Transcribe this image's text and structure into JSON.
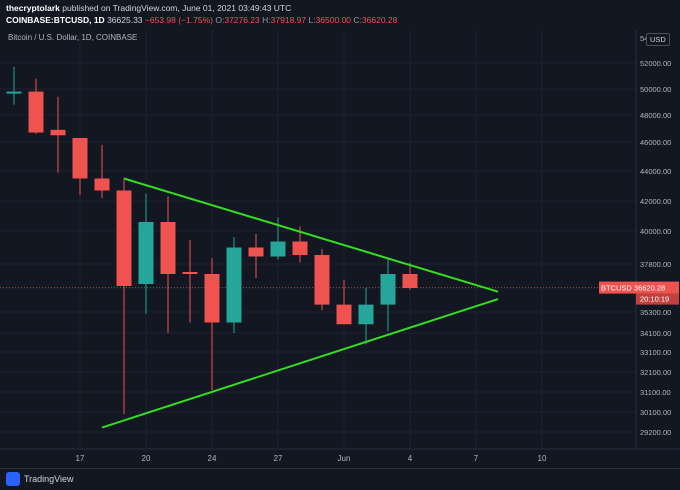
{
  "header": {
    "user": "thecryptolark",
    "published": "published on TradingView.com, June 01, 2021 03:49:43 UTC",
    "symbol": "COINBASE:BTCUSD, 1D",
    "last": "36625.33",
    "change": "−653.98 (−1.75%)",
    "o_label": "O:",
    "o": "37276.23",
    "h_label": "H:",
    "h": "37918.97",
    "l_label": "L:",
    "l": "36500.00",
    "c_label": "C:",
    "c": "36620.28"
  },
  "chart_label": "Bitcoin / U.S. Dollar, 1D, COINBASE",
  "currency": "USD",
  "price_badge": {
    "symbol": "BTCUSD",
    "price": "36620.28",
    "countdown": "20:10:19"
  },
  "footer": {
    "brand": "TradingView"
  },
  "colors": {
    "up": "#26a69a",
    "down": "#ef5350",
    "trendline": "#33dd1f",
    "background": "#131722",
    "grid": "#1e222d",
    "text": "#b2b5be"
  },
  "chart_data": {
    "type": "candlestick",
    "y_axis_ticks": [
      29200,
      30100,
      31100,
      32100,
      33100,
      34100,
      35300,
      36600,
      37800,
      40000,
      42000,
      44000,
      46000,
      48000,
      50000,
      52000
    ],
    "y_axis_top_partial": "54",
    "x_axis_ticks": [
      "17",
      "20",
      "24",
      "27",
      "Jun",
      "4",
      "7",
      "10"
    ],
    "candles": [
      {
        "o": 49700,
        "h": 51700,
        "l": 48800,
        "c": 49800
      },
      {
        "o": 49800,
        "h": 50800,
        "l": 46600,
        "c": 46700
      },
      {
        "o": 46900,
        "h": 49400,
        "l": 43900,
        "c": 46500
      },
      {
        "o": 46300,
        "h": 46300,
        "l": 42400,
        "c": 43500
      },
      {
        "o": 43500,
        "h": 45800,
        "l": 42200,
        "c": 42700
      },
      {
        "o": 42700,
        "h": 43500,
        "l": 30000,
        "c": 36700
      },
      {
        "o": 36800,
        "h": 42500,
        "l": 35200,
        "c": 40600
      },
      {
        "o": 40600,
        "h": 42300,
        "l": 34100,
        "c": 37300
      },
      {
        "o": 37400,
        "h": 39400,
        "l": 34700,
        "c": 37300
      },
      {
        "o": 37300,
        "h": 38200,
        "l": 31200,
        "c": 34700
      },
      {
        "o": 34700,
        "h": 39600,
        "l": 34100,
        "c": 38900
      },
      {
        "o": 38900,
        "h": 39800,
        "l": 37100,
        "c": 38300
      },
      {
        "o": 38300,
        "h": 40900,
        "l": 38100,
        "c": 39300
      },
      {
        "o": 39300,
        "h": 40300,
        "l": 37900,
        "c": 38400
      },
      {
        "o": 38400,
        "h": 38800,
        "l": 35400,
        "c": 35700
      },
      {
        "o": 35700,
        "h": 37000,
        "l": 34600,
        "c": 34600
      },
      {
        "o": 34600,
        "h": 36600,
        "l": 33500,
        "c": 35700
      },
      {
        "o": 35700,
        "h": 38100,
        "l": 34200,
        "c": 37300
      },
      {
        "o": 37300,
        "h": 37900,
        "l": 36500,
        "c": 36600
      }
    ],
    "trendlines": [
      {
        "from": {
          "candle": 5,
          "price": 43500
        },
        "to": {
          "x_label": "8",
          "price": 36400
        }
      },
      {
        "from": {
          "candle": 4,
          "price": 29400
        },
        "to": {
          "x_label": "8",
          "price": 36000
        }
      }
    ],
    "current_price": 36620.28
  }
}
